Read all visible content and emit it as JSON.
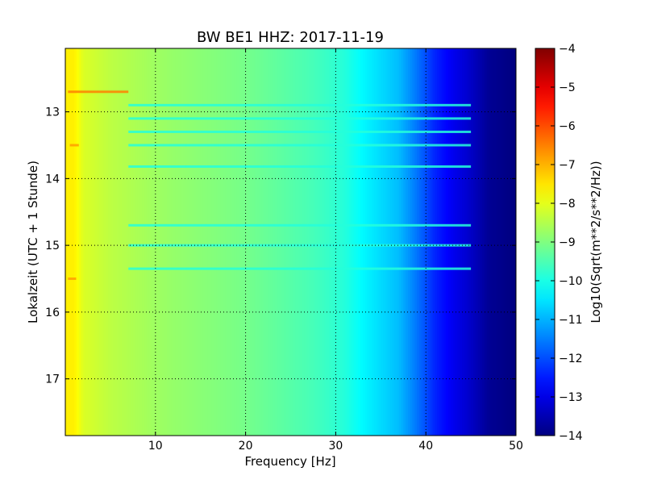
{
  "chart_data": {
    "type": "heatmap",
    "title": "BW BE1 HHZ: 2017-11-19",
    "xlabel": "Frequency [Hz]",
    "ylabel": "Lokalzeit (UTC + 1 Stunde)",
    "xlim": [
      0,
      50
    ],
    "ylim": [
      12.05,
      17.85
    ],
    "y_inverted": true,
    "x_ticks": [
      10,
      20,
      30,
      40,
      50
    ],
    "x_tick_labels": [
      "10",
      "20",
      "30",
      "40",
      "50"
    ],
    "y_ticks": [
      13,
      14,
      15,
      16,
      17
    ],
    "y_tick_labels": [
      "13",
      "14",
      "15",
      "16",
      "17"
    ],
    "grid": true,
    "colormap": "jet",
    "colorbar": {
      "label": "Log10(Sqrt(m**2/s**2/Hz))",
      "min": -14,
      "max": -4,
      "ticks": [
        -4,
        -5,
        -6,
        -7,
        -8,
        -9,
        -10,
        -11,
        -12,
        -13,
        -14
      ],
      "tick_labels": [
        "−4",
        "−5",
        "−6",
        "−7",
        "−8",
        "−9",
        "−10",
        "−11",
        "−12",
        "−13",
        "−14"
      ]
    },
    "spectrum_profile_hz_value": [
      [
        0.2,
        -7.6
      ],
      [
        1,
        -7.6
      ],
      [
        2,
        -8.1
      ],
      [
        5,
        -8.4
      ],
      [
        10,
        -8.7
      ],
      [
        15,
        -8.9
      ],
      [
        20,
        -9.1
      ],
      [
        25,
        -9.4
      ],
      [
        28,
        -9.6
      ],
      [
        31,
        -9.9
      ],
      [
        33,
        -10.3
      ],
      [
        35,
        -10.6
      ],
      [
        37,
        -10.9
      ],
      [
        39,
        -11.6
      ],
      [
        41,
        -12.4
      ],
      [
        43,
        -12.9
      ],
      [
        45,
        -13.3
      ],
      [
        47,
        -13.8
      ],
      [
        50,
        -14.0
      ]
    ],
    "noise_bands": [
      {
        "time": 12.7,
        "f_start": 0.3,
        "f_end": 7,
        "value": -6.5
      },
      {
        "time": 13.5,
        "f_start": 0.5,
        "f_end": 1.5,
        "value": -6.8
      },
      {
        "time": 15.5,
        "f_start": 0.3,
        "f_end": 1.2,
        "value": -6.8
      },
      {
        "time": 12.9,
        "f_start": 7,
        "f_end": 45,
        "value": -9.9
      },
      {
        "time": 13.1,
        "f_start": 7,
        "f_end": 45,
        "value": -9.9
      },
      {
        "time": 13.3,
        "f_start": 7,
        "f_end": 45,
        "value": -9.9
      },
      {
        "time": 13.5,
        "f_start": 7,
        "f_end": 45,
        "value": -9.9
      },
      {
        "time": 13.82,
        "f_start": 7,
        "f_end": 45,
        "value": -9.9
      },
      {
        "time": 14.7,
        "f_start": 7,
        "f_end": 45,
        "value": -9.9
      },
      {
        "time": 15.0,
        "f_start": 7,
        "f_end": 45,
        "value": -9.9
      },
      {
        "time": 15.35,
        "f_start": 7,
        "f_end": 45,
        "value": -9.9
      }
    ]
  }
}
